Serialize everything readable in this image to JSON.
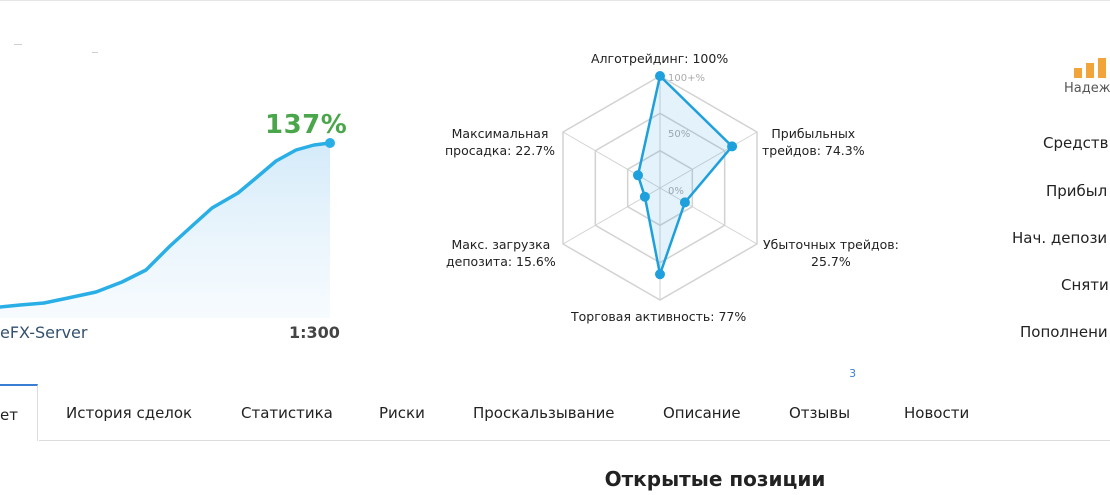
{
  "growth": {
    "percent_label": "137%",
    "server": "eFX-Server",
    "leverage": "1:300",
    "line_color": "#2aaee6"
  },
  "radar": {
    "labels": {
      "algo": "Алготрейдинг: 100%",
      "profit_1": "Прибыльных",
      "profit_2": "трейдов: 74.3%",
      "loss_1": "Убыточных трейдов:",
      "loss_2": "25.7%",
      "activity": "Торговая активность: 77%",
      "load_1": "Макс. загрузка",
      "load_2": "депозита: 15.6%",
      "dd_1": "Максимальная",
      "dd_2": "просадка: 22.7%"
    },
    "ticks": [
      "100+%",
      "50%",
      "0%"
    ],
    "values": [
      1.0,
      0.743,
      0.257,
      0.77,
      0.156,
      0.227
    ],
    "color": "#1ea0dd"
  },
  "reliability": {
    "label": "Надеж",
    "color": "#f0a43a"
  },
  "stats": {
    "funds": "Средств",
    "profit": "Прибыл",
    "initial_deposit": "Нач. депози",
    "withdrawals": "Сняти",
    "deposits": "Пополнени"
  },
  "tabs": [
    {
      "label": "ет"
    },
    {
      "label": "История сделок"
    },
    {
      "label": "Статистика"
    },
    {
      "label": "Риски"
    },
    {
      "label": "Проскальзывание"
    },
    {
      "label": "Описание"
    },
    {
      "label": "Отзывы",
      "badge": "3"
    },
    {
      "label": "Новости"
    }
  ],
  "section": {
    "title": "Открытые позиции"
  }
}
